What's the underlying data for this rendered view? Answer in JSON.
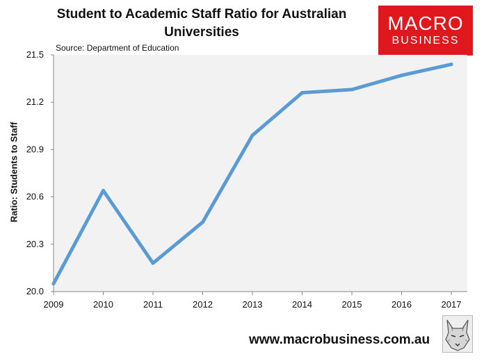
{
  "chart_data": {
    "type": "line",
    "title": "Student to Academic Staff Ratio for Australian Universities",
    "subtitle": "Source: Department of Education",
    "xlabel": "",
    "ylabel": "Ratio: Students to Staff",
    "x": [
      "2009",
      "2010",
      "2011",
      "2012",
      "2013",
      "2014",
      "2015",
      "2016",
      "2017"
    ],
    "series": [
      {
        "values": [
          20.05,
          20.64,
          20.18,
          20.44,
          20.99,
          21.26,
          21.28,
          21.37,
          21.44
        ]
      }
    ],
    "ylim": [
      20.0,
      21.5
    ],
    "yticks": [
      "20.0",
      "20.3",
      "20.6",
      "20.9",
      "21.2",
      "21.5"
    ],
    "grid": false,
    "line_color": "#5b9bd5",
    "plot_background": "#f2f2f2"
  },
  "logo": {
    "line1": "MACRO",
    "line2": "BUSINESS",
    "color": "#e0181e"
  },
  "footer": {
    "website": "www.macrobusiness.com.au"
  },
  "icons": {
    "mascot": "wolf-icon"
  }
}
